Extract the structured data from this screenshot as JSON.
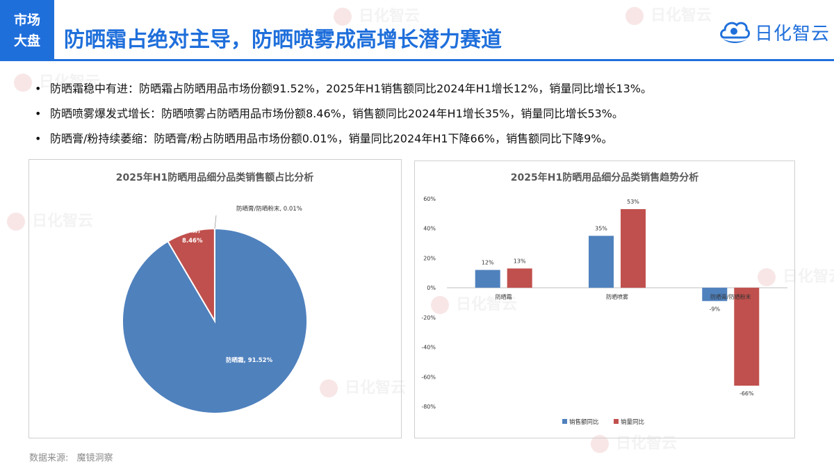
{
  "header": {
    "tag_line1": "市场",
    "tag_line2": "大盘",
    "title": "防晒霜占绝对主导，防晒喷雾成高增长潜力赛道",
    "logo_text": "日化智云"
  },
  "bullets": [
    "防晒霜稳中有进：防晒霜占防晒用品市场份额91.52%，2025年H1销售额同比2024年H1增长12%，销量同比增长13%。",
    "防晒喷雾爆发式增长：防晒喷雾占防晒用品市场份额8.46%，销售额同比2024年H1增长35%，销量同比增长53%。",
    "防晒膏/粉持续萎缩：防晒膏/粉占防晒用品市场份额0.01%，销量同比2024年H1下降66%，销售额同比下降9%。"
  ],
  "source": {
    "label": "数据来源:",
    "value": "魔镜洞察"
  },
  "watermark_text": "日化智云",
  "colors": {
    "accent": "#1f6fdb",
    "blue_series": "#4f81bd",
    "red_series": "#c0504d"
  },
  "chart_data": [
    {
      "type": "pie",
      "title": "2025年H1防晒用品细分品类销售额占比分析",
      "slices": [
        {
          "name": "防晒霜",
          "value": 91.52,
          "label": "防晒霜, 91.52%",
          "color": "#4f81bd"
        },
        {
          "name": "防晒喷雾",
          "value": 8.46,
          "label_line1": "防晒喷雾,",
          "label_line2": "8.46%",
          "color": "#c0504d"
        },
        {
          "name": "防晒膏/防晒粉末",
          "value": 0.01,
          "label": "防晒膏/防晒粉末, 0.01%",
          "color": "#9bbb59"
        }
      ]
    },
    {
      "type": "bar",
      "title": "2025年H1防晒用品细分品类销售趋势分析",
      "categories": [
        "防晒霜",
        "防晒喷雾",
        "防晒膏/防晒粉末"
      ],
      "series": [
        {
          "name": "销售额同比",
          "values": [
            12,
            35,
            -9
          ],
          "labels": [
            "12%",
            "35%",
            "-9%"
          ],
          "color": "#4f81bd"
        },
        {
          "name": "销量同比",
          "values": [
            13,
            53,
            -66
          ],
          "labels": [
            "13%",
            "53%",
            "-66%"
          ],
          "color": "#c0504d"
        }
      ],
      "ylim": [
        -80,
        60
      ],
      "yticks": [
        60,
        40,
        20,
        0,
        -20,
        -40,
        -60,
        -80
      ],
      "ytick_labels": [
        "60%",
        "40%",
        "20%",
        "0%",
        "-20%",
        "-40%",
        "-60%",
        "-80%"
      ],
      "grid": false,
      "legend": "bottom"
    }
  ]
}
